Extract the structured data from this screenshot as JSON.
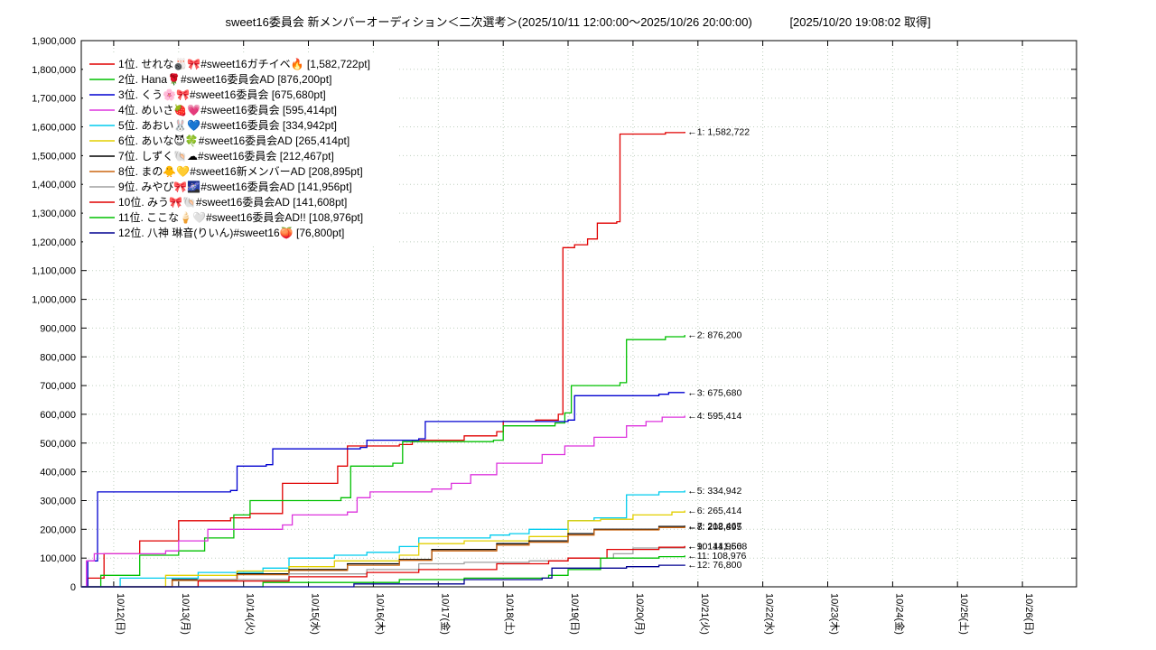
{
  "header": {
    "title": "sweet16委員会 新メンバーオーディション＜二次選考＞(2025/10/11 12:00:00～2025/10/26 20:00:00)",
    "retrieved": "[2025/10/20 19:08:02 取得]"
  },
  "chart_data": {
    "type": "line",
    "title": "sweet16委員会 新メンバーオーディション＜二次選考＞",
    "period_start": "2025/10/11 12:00:00",
    "period_end": "2025/10/26 20:00:00",
    "retrieved_at": "2025/10/20 19:08:02",
    "grid": true,
    "legend_position": "top-left",
    "colors": {
      "background": "#ffffff",
      "border": "#000000",
      "grid": "#bfcfbf",
      "text": "#000000"
    },
    "x_axis": {
      "unit": "days from 2025/10/11 12:00",
      "range_days": [
        0,
        15.3333
      ],
      "first_tick_day_offset": 0.5,
      "label_rotation": 90,
      "tick_labels": [
        "10/12(日)",
        "10/13(月)",
        "10/14(火)",
        "10/15(水)",
        "10/16(木)",
        "10/17(金)",
        "10/18(土)",
        "10/19(日)",
        "10/20(月)",
        "10/21(火)",
        "10/22(水)",
        "10/23(木)",
        "10/24(金)",
        "10/25(土)",
        "10/26(日)"
      ]
    },
    "y_axis": {
      "min": 0,
      "max": 1900000,
      "tick_step": 100000
    },
    "data_end_day_offset": 9.297,
    "series": [
      {
        "rank": 1,
        "label": "1位. せれな🎳🎀#sweet16ガチイベ🔥 [1,582,722pt]",
        "color": "#e00000",
        "final": 1582722,
        "annotation": "←1: 1,582,722",
        "points": [
          [
            0,
            0
          ],
          [
            0.1,
            30000
          ],
          [
            0.35,
            115000
          ],
          [
            0.9,
            160000
          ],
          [
            1.5,
            230000
          ],
          [
            2.3,
            240000
          ],
          [
            2.6,
            255000
          ],
          [
            3.1,
            360000
          ],
          [
            3.95,
            420000
          ],
          [
            4.1,
            490000
          ],
          [
            4.9,
            495000
          ],
          [
            5.1,
            510000
          ],
          [
            5.9,
            525000
          ],
          [
            6.4,
            540000
          ],
          [
            6.5,
            575000
          ],
          [
            7.0,
            580000
          ],
          [
            7.35,
            600000
          ],
          [
            7.42,
            1180000
          ],
          [
            7.6,
            1190000
          ],
          [
            7.8,
            1210000
          ],
          [
            7.95,
            1265000
          ],
          [
            8.25,
            1270000
          ],
          [
            8.3,
            1575000
          ],
          [
            9.0,
            1580000
          ],
          [
            9.297,
            1582722
          ]
        ]
      },
      {
        "rank": 2,
        "label": "2位. Hana🌹#sweet16委員会AD [876,200pt]",
        "color": "#00c000",
        "final": 876200,
        "annotation": "←2: 876,200",
        "points": [
          [
            0,
            0
          ],
          [
            0.3,
            40000
          ],
          [
            0.9,
            110000
          ],
          [
            1.5,
            125000
          ],
          [
            1.9,
            170000
          ],
          [
            2.35,
            250000
          ],
          [
            2.6,
            300000
          ],
          [
            4.0,
            310000
          ],
          [
            4.15,
            420000
          ],
          [
            4.8,
            430000
          ],
          [
            4.95,
            505000
          ],
          [
            6.35,
            510000
          ],
          [
            6.5,
            560000
          ],
          [
            7.3,
            570000
          ],
          [
            7.45,
            605000
          ],
          [
            7.55,
            700000
          ],
          [
            8.3,
            710000
          ],
          [
            8.4,
            860000
          ],
          [
            9.0,
            870000
          ],
          [
            9.297,
            876200
          ]
        ]
      },
      {
        "rank": 3,
        "label": "3位. くう🌸🎀#sweet16委員会 [675,680pt]",
        "color": "#0000d0",
        "final": 675680,
        "annotation": "←3: 675,680",
        "points": [
          [
            0,
            0
          ],
          [
            0.1,
            90000
          ],
          [
            0.25,
            330000
          ],
          [
            2.3,
            335000
          ],
          [
            2.4,
            420000
          ],
          [
            2.85,
            425000
          ],
          [
            2.95,
            480000
          ],
          [
            4.3,
            485000
          ],
          [
            4.4,
            510000
          ],
          [
            5.2,
            515000
          ],
          [
            5.3,
            575000
          ],
          [
            7.5,
            580000
          ],
          [
            7.6,
            665000
          ],
          [
            8.9,
            670000
          ],
          [
            9.05,
            675680
          ],
          [
            9.297,
            675680
          ]
        ]
      },
      {
        "rank": 4,
        "label": "4位. めいさ🍓💗#sweet16委員会 [595,414pt]",
        "color": "#dd33dd",
        "final": 595414,
        "annotation": "←4: 595,414",
        "points": [
          [
            0,
            0
          ],
          [
            0.08,
            90000
          ],
          [
            0.2,
            115000
          ],
          [
            1.3,
            125000
          ],
          [
            1.5,
            160000
          ],
          [
            1.95,
            200000
          ],
          [
            3.1,
            215000
          ],
          [
            3.25,
            250000
          ],
          [
            4.1,
            260000
          ],
          [
            4.25,
            310000
          ],
          [
            4.45,
            330000
          ],
          [
            5.4,
            340000
          ],
          [
            5.7,
            360000
          ],
          [
            6.0,
            390000
          ],
          [
            6.4,
            430000
          ],
          [
            7.1,
            460000
          ],
          [
            7.45,
            490000
          ],
          [
            7.9,
            520000
          ],
          [
            8.4,
            560000
          ],
          [
            8.7,
            575000
          ],
          [
            8.95,
            590000
          ],
          [
            9.297,
            595414
          ]
        ]
      },
      {
        "rank": 5,
        "label": "5位. あおい🐰💙#sweet16委員会 [334,942pt]",
        "color": "#00ccee",
        "final": 334942,
        "annotation": "←5: 334,942",
        "points": [
          [
            0,
            0
          ],
          [
            0.6,
            30000
          ],
          [
            1.8,
            50000
          ],
          [
            2.8,
            65000
          ],
          [
            3.2,
            100000
          ],
          [
            3.9,
            110000
          ],
          [
            4.4,
            120000
          ],
          [
            4.9,
            140000
          ],
          [
            5.2,
            170000
          ],
          [
            6.3,
            180000
          ],
          [
            6.6,
            185000
          ],
          [
            6.9,
            200000
          ],
          [
            7.5,
            230000
          ],
          [
            7.9,
            240000
          ],
          [
            8.4,
            320000
          ],
          [
            8.9,
            330000
          ],
          [
            9.297,
            334942
          ]
        ]
      },
      {
        "rank": 6,
        "label": "6位. あいな😈🍀#sweet16委員会AD [265,414pt]",
        "color": "#e3cf00",
        "final": 265414,
        "annotation": "←6: 265,414",
        "points": [
          [
            0,
            0
          ],
          [
            1.3,
            40000
          ],
          [
            2.4,
            55000
          ],
          [
            3.2,
            70000
          ],
          [
            3.9,
            90000
          ],
          [
            4.9,
            110000
          ],
          [
            5.2,
            150000
          ],
          [
            5.9,
            160000
          ],
          [
            6.9,
            175000
          ],
          [
            7.5,
            230000
          ],
          [
            8.0,
            235000
          ],
          [
            8.5,
            250000
          ],
          [
            9.1,
            260000
          ],
          [
            9.297,
            265414
          ]
        ]
      },
      {
        "rank": 7,
        "label": "7位. しずく🐚☁#sweet16委員会 [212,467pt]",
        "color": "#000000",
        "final": 212467,
        "annotation": "←7: 212,467",
        "points": [
          [
            0,
            0
          ],
          [
            1.4,
            25000
          ],
          [
            2.4,
            45000
          ],
          [
            3.2,
            60000
          ],
          [
            4.1,
            80000
          ],
          [
            4.9,
            95000
          ],
          [
            5.4,
            130000
          ],
          [
            6.4,
            150000
          ],
          [
            6.9,
            160000
          ],
          [
            7.5,
            185000
          ],
          [
            7.9,
            200000
          ],
          [
            8.9,
            210000
          ],
          [
            9.297,
            212467
          ]
        ]
      },
      {
        "rank": 8,
        "label": "8位. まの🐥💛#sweet16新メンバーAD [208,895pt]",
        "color": "#cc6611",
        "final": 208895,
        "annotation": "←8: 208,895",
        "points": [
          [
            0,
            0
          ],
          [
            1.4,
            22000
          ],
          [
            2.4,
            42000
          ],
          [
            3.2,
            57000
          ],
          [
            4.1,
            75000
          ],
          [
            4.9,
            92000
          ],
          [
            5.4,
            125000
          ],
          [
            6.4,
            145000
          ],
          [
            6.9,
            155000
          ],
          [
            7.5,
            180000
          ],
          [
            7.9,
            198000
          ],
          [
            8.9,
            206000
          ],
          [
            9.297,
            208895
          ]
        ]
      },
      {
        "rank": 9,
        "label": "9位. みやび🎀🌌#sweet16委員会AD [141,956pt]",
        "color": "#a0a0a0",
        "final": 141956,
        "annotation": "←9: 141,956",
        "points": [
          [
            0,
            0
          ],
          [
            1.8,
            25000
          ],
          [
            3.2,
            45000
          ],
          [
            4.4,
            60000
          ],
          [
            5.2,
            80000
          ],
          [
            5.9,
            85000
          ],
          [
            6.9,
            90000
          ],
          [
            7.5,
            100000
          ],
          [
            8.2,
            115000
          ],
          [
            8.5,
            135000
          ],
          [
            9.297,
            141956
          ]
        ]
      },
      {
        "rank": 10,
        "label": "10位. みう🎀🐚#sweet16委員会AD [141,608pt]",
        "color": "#e00000",
        "final": 141608,
        "annotation": "←10: 141,608",
        "points": [
          [
            0,
            0
          ],
          [
            1.8,
            20000
          ],
          [
            3.2,
            35000
          ],
          [
            4.4,
            50000
          ],
          [
            5.2,
            60000
          ],
          [
            6.4,
            80000
          ],
          [
            7.2,
            90000
          ],
          [
            7.5,
            100000
          ],
          [
            8.1,
            130000
          ],
          [
            8.9,
            138000
          ],
          [
            9.297,
            141608
          ]
        ]
      },
      {
        "rank": 11,
        "label": "11位. ここな🍦🤍#sweet16委員会AD!! [108,976pt]",
        "color": "#00c000",
        "final": 108976,
        "annotation": "←11: 108,976",
        "points": [
          [
            0,
            0
          ],
          [
            2.8,
            15000
          ],
          [
            4.9,
            25000
          ],
          [
            5.9,
            30000
          ],
          [
            7.2,
            40000
          ],
          [
            7.5,
            60000
          ],
          [
            8.0,
            100000
          ],
          [
            8.9,
            105000
          ],
          [
            9.297,
            108976
          ]
        ]
      },
      {
        "rank": 12,
        "label": "12位. 八神 琳音(りいん)#sweet16🍑 [76,800pt]",
        "color": "#000090",
        "final": 76800,
        "annotation": "←12: 76,800",
        "points": [
          [
            0,
            0
          ],
          [
            4.2,
            10000
          ],
          [
            5.9,
            25000
          ],
          [
            7.1,
            30000
          ],
          [
            7.25,
            65000
          ],
          [
            8.4,
            70000
          ],
          [
            8.9,
            75000
          ],
          [
            9.297,
            76800
          ]
        ]
      }
    ]
  }
}
